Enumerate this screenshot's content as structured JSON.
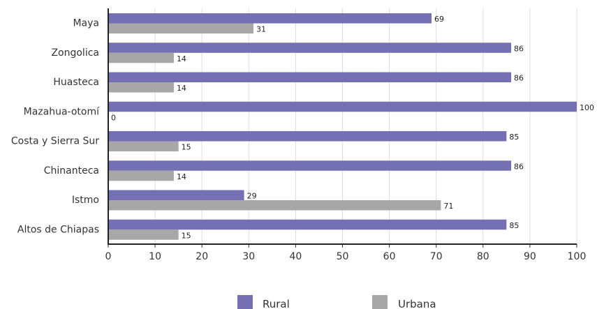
{
  "chart_data": {
    "type": "bar",
    "orientation": "horizontal",
    "categories": [
      "Maya",
      "Zongolica",
      "Huasteca",
      "Mazahua-otomí",
      "Costa y Sierra Sur",
      "Chinanteca",
      "Istmo",
      "Altos de Chiapas"
    ],
    "series": [
      {
        "name": "Rural",
        "color": "#7470b3",
        "values": [
          69,
          86,
          86,
          100,
          85,
          86,
          29,
          85
        ]
      },
      {
        "name": "Urbana",
        "color": "#a7a7a7",
        "values": [
          31,
          14,
          14,
          0,
          15,
          14,
          71,
          15
        ]
      }
    ],
    "xlim": [
      0,
      100
    ],
    "xticks": [
      "0",
      "10",
      "20",
      "30",
      "40",
      "50",
      "60",
      "70",
      "80",
      "90",
      "100"
    ],
    "grid": "vertical",
    "legend": "bottom"
  }
}
